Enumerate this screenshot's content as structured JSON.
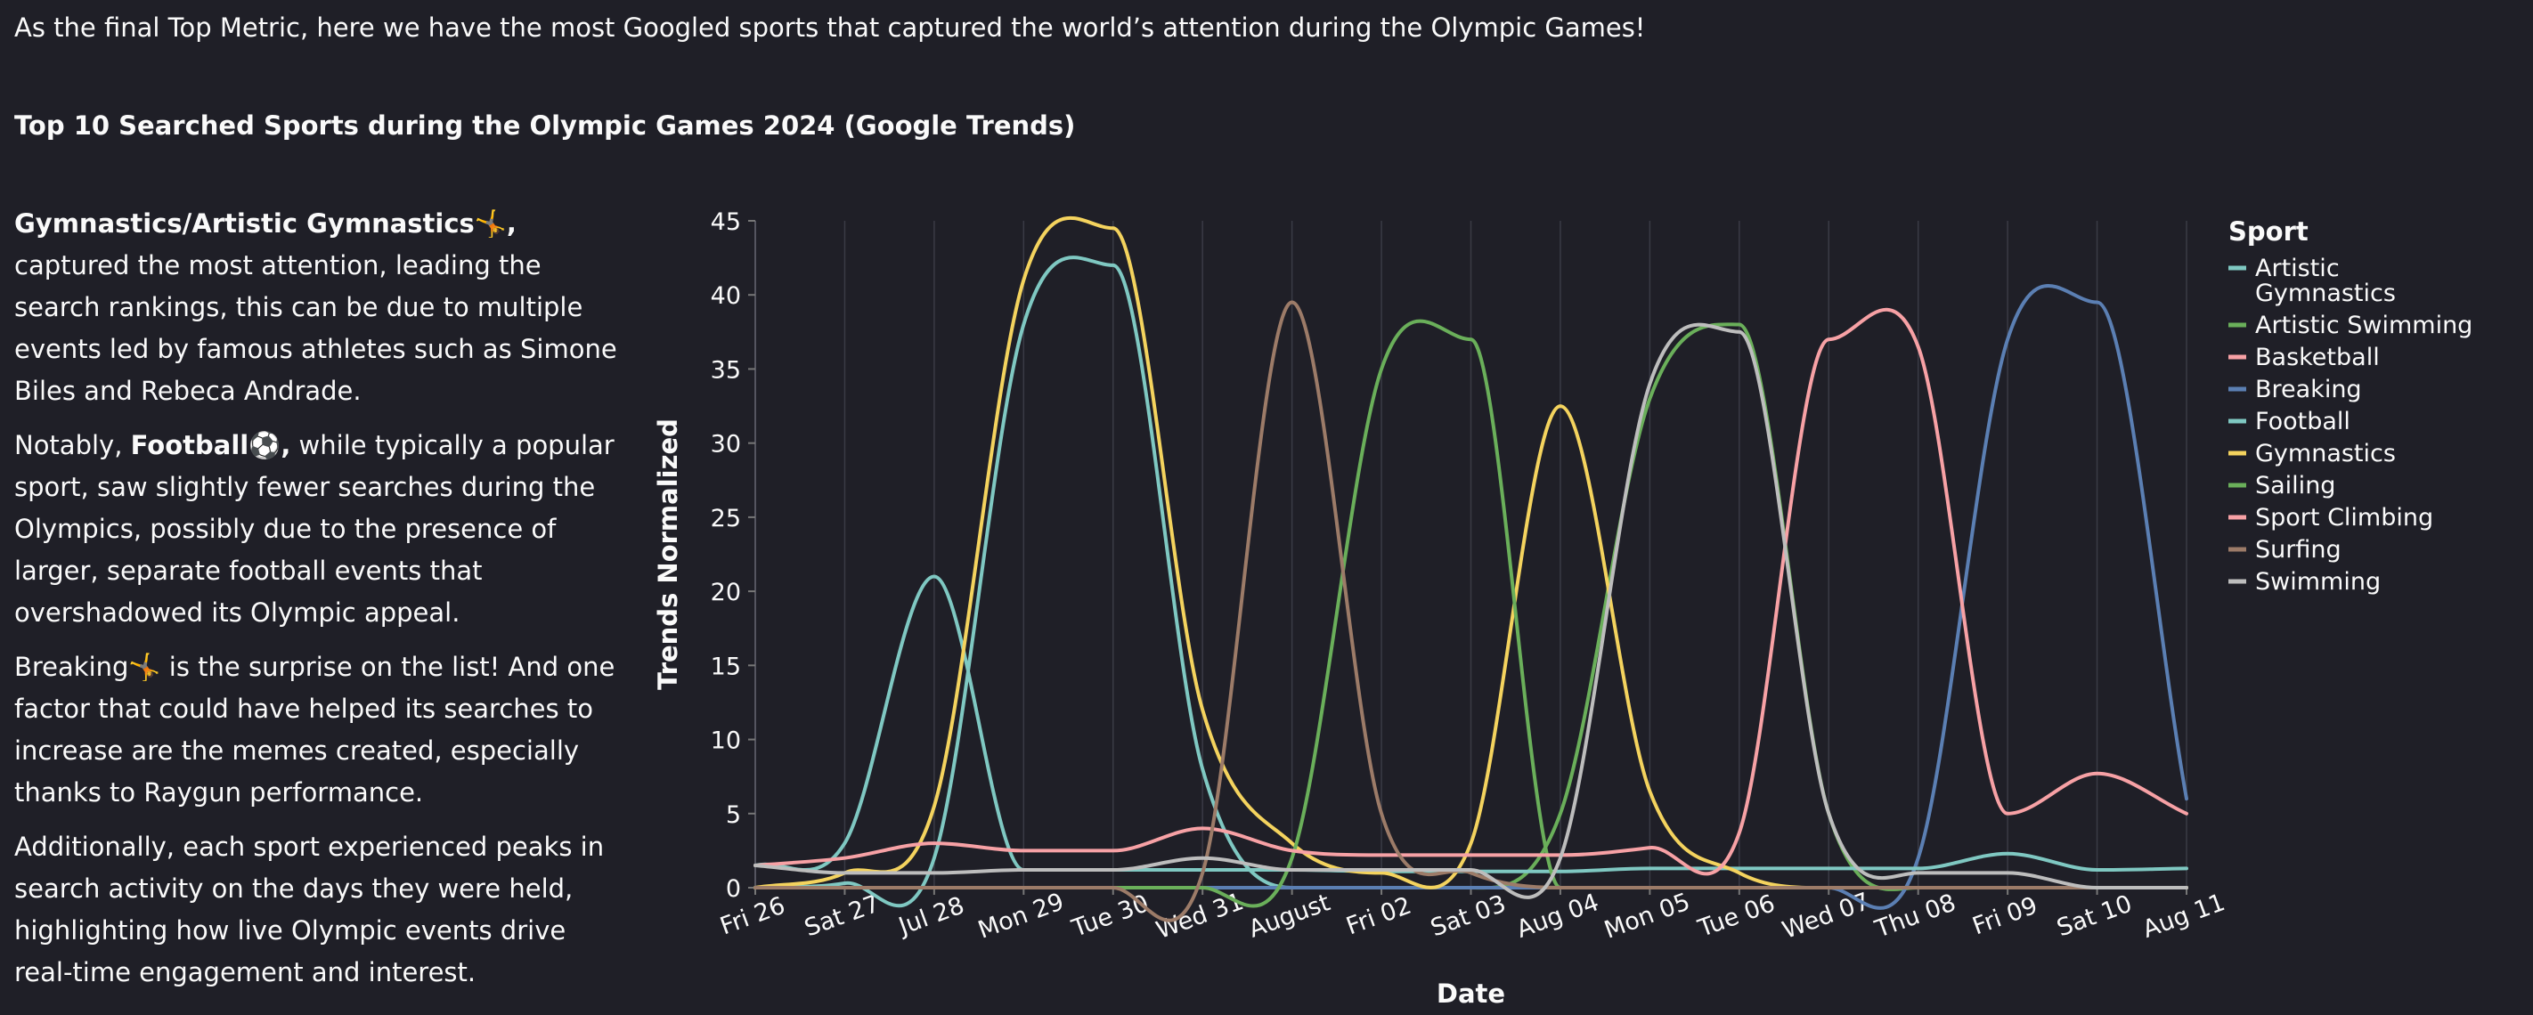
{
  "intro_text": "As the final Top Metric, here we have the most Googled sports that captured the world’s attention during the Olympic Games!",
  "heading": "Top 10 Searched Sports during the Olympic Games 2024 (Google Trends)",
  "paragraphs": {
    "p1_bold": "Gymnastics/Artistic Gymnastics🤸,",
    "p1_rest": " captured the most attention, leading the search rankings, this can be due to multiple events led by famous athletes such as Simone Biles and Rebeca Andrade.",
    "p2_pre": "Notably, ",
    "p2_bold": "Football⚽,",
    "p2_rest": " while typically a popular sport, saw slightly fewer searches during the Olympics, possibly due to the presence of larger, separate football events that overshadowed its Olympic appeal.",
    "p3": "Breaking🤸 is the surprise on the list! And one factor that could have helped its searches to increase are the memes created, especially thanks to Raygun performance.",
    "p4": "Additionally, each sport experienced peaks in search activity on the days they were held, highlighting how live Olympic events drive real-time engagement and interest."
  },
  "chart_data": {
    "type": "line",
    "xlabel": "Date",
    "ylabel": "Trends Normalized",
    "x": [
      "Fri 26",
      "Sat 27",
      "Jul 28",
      "Mon 29",
      "Tue 30",
      "Wed 31",
      "August",
      "Fri 02",
      "Sat 03",
      "Aug 04",
      "Mon 05",
      "Tue 06",
      "Wed 07",
      "Thu 08",
      "Fri 09",
      "Sat 10",
      "Aug 11"
    ],
    "ylim": [
      0,
      45
    ],
    "yticks": [
      0,
      5,
      10,
      15,
      20,
      25,
      30,
      35,
      40,
      45
    ],
    "legend_title": "Sport",
    "legend_position": "right",
    "grid": "vertical",
    "series": [
      {
        "name": "Artistic Gymnastics",
        "color": "#7fc8c2",
        "values": [
          0,
          0.3,
          2,
          38,
          42,
          8,
          0,
          0,
          0,
          0,
          0,
          0,
          0,
          0,
          0,
          0,
          0
        ]
      },
      {
        "name": "Artistic Swimming",
        "color": "#6aaf5a",
        "values": [
          0,
          0,
          0,
          0,
          0,
          0,
          0,
          0,
          0,
          5,
          33,
          38,
          5,
          0,
          0,
          0,
          0
        ]
      },
      {
        "name": "Basketball",
        "color": "#f7a1a5",
        "values": [
          0,
          0,
          0,
          0,
          0,
          0,
          0,
          0,
          0,
          0,
          0,
          0,
          0,
          0,
          0,
          0,
          0
        ]
      },
      {
        "name": "Breaking",
        "color": "#5b7fb3",
        "values": [
          0,
          0,
          0,
          0,
          0,
          0,
          0,
          0,
          0,
          0,
          0,
          0,
          0,
          2,
          37,
          39.5,
          6
        ]
      },
      {
        "name": "Football",
        "color": "#7fc8c2",
        "values": [
          1.5,
          3,
          21,
          1.2,
          1.2,
          1.2,
          1.2,
          1.1,
          1.1,
          1.1,
          1.3,
          1.3,
          1.3,
          1.3,
          2.3,
          1.2,
          1.3
        ]
      },
      {
        "name": "Gymnastics",
        "color": "#f4d35e",
        "values": [
          0,
          1,
          5.5,
          41,
          44.5,
          12,
          3,
          1,
          3,
          32.5,
          6.5,
          1,
          0,
          0,
          0,
          0,
          0
        ]
      },
      {
        "name": "Sailing",
        "color": "#6aaf5a",
        "values": [
          0,
          0,
          0,
          0,
          0,
          0,
          2,
          35,
          37,
          0,
          0,
          0,
          0,
          0,
          0,
          0,
          0
        ]
      },
      {
        "name": "Sport Climbing",
        "color": "#f7a1a5",
        "values": [
          1.5,
          2,
          3,
          2.5,
          2.5,
          4,
          2.5,
          2.2,
          2.2,
          2.2,
          2.7,
          3.7,
          37,
          36.5,
          5,
          7.7,
          5
        ]
      },
      {
        "name": "Surfing",
        "color": "#9c7b68",
        "values": [
          0,
          0,
          0,
          0,
          0,
          1,
          39.5,
          5,
          1,
          0,
          0,
          0,
          0,
          0,
          0,
          0,
          0
        ]
      },
      {
        "name": "Swimming",
        "color": "#bdbdbd",
        "values": [
          1.5,
          1,
          1,
          1.2,
          1.2,
          2,
          1.2,
          1.2,
          1.2,
          2,
          34,
          37.5,
          5,
          1,
          1,
          0,
          0
        ]
      }
    ]
  }
}
